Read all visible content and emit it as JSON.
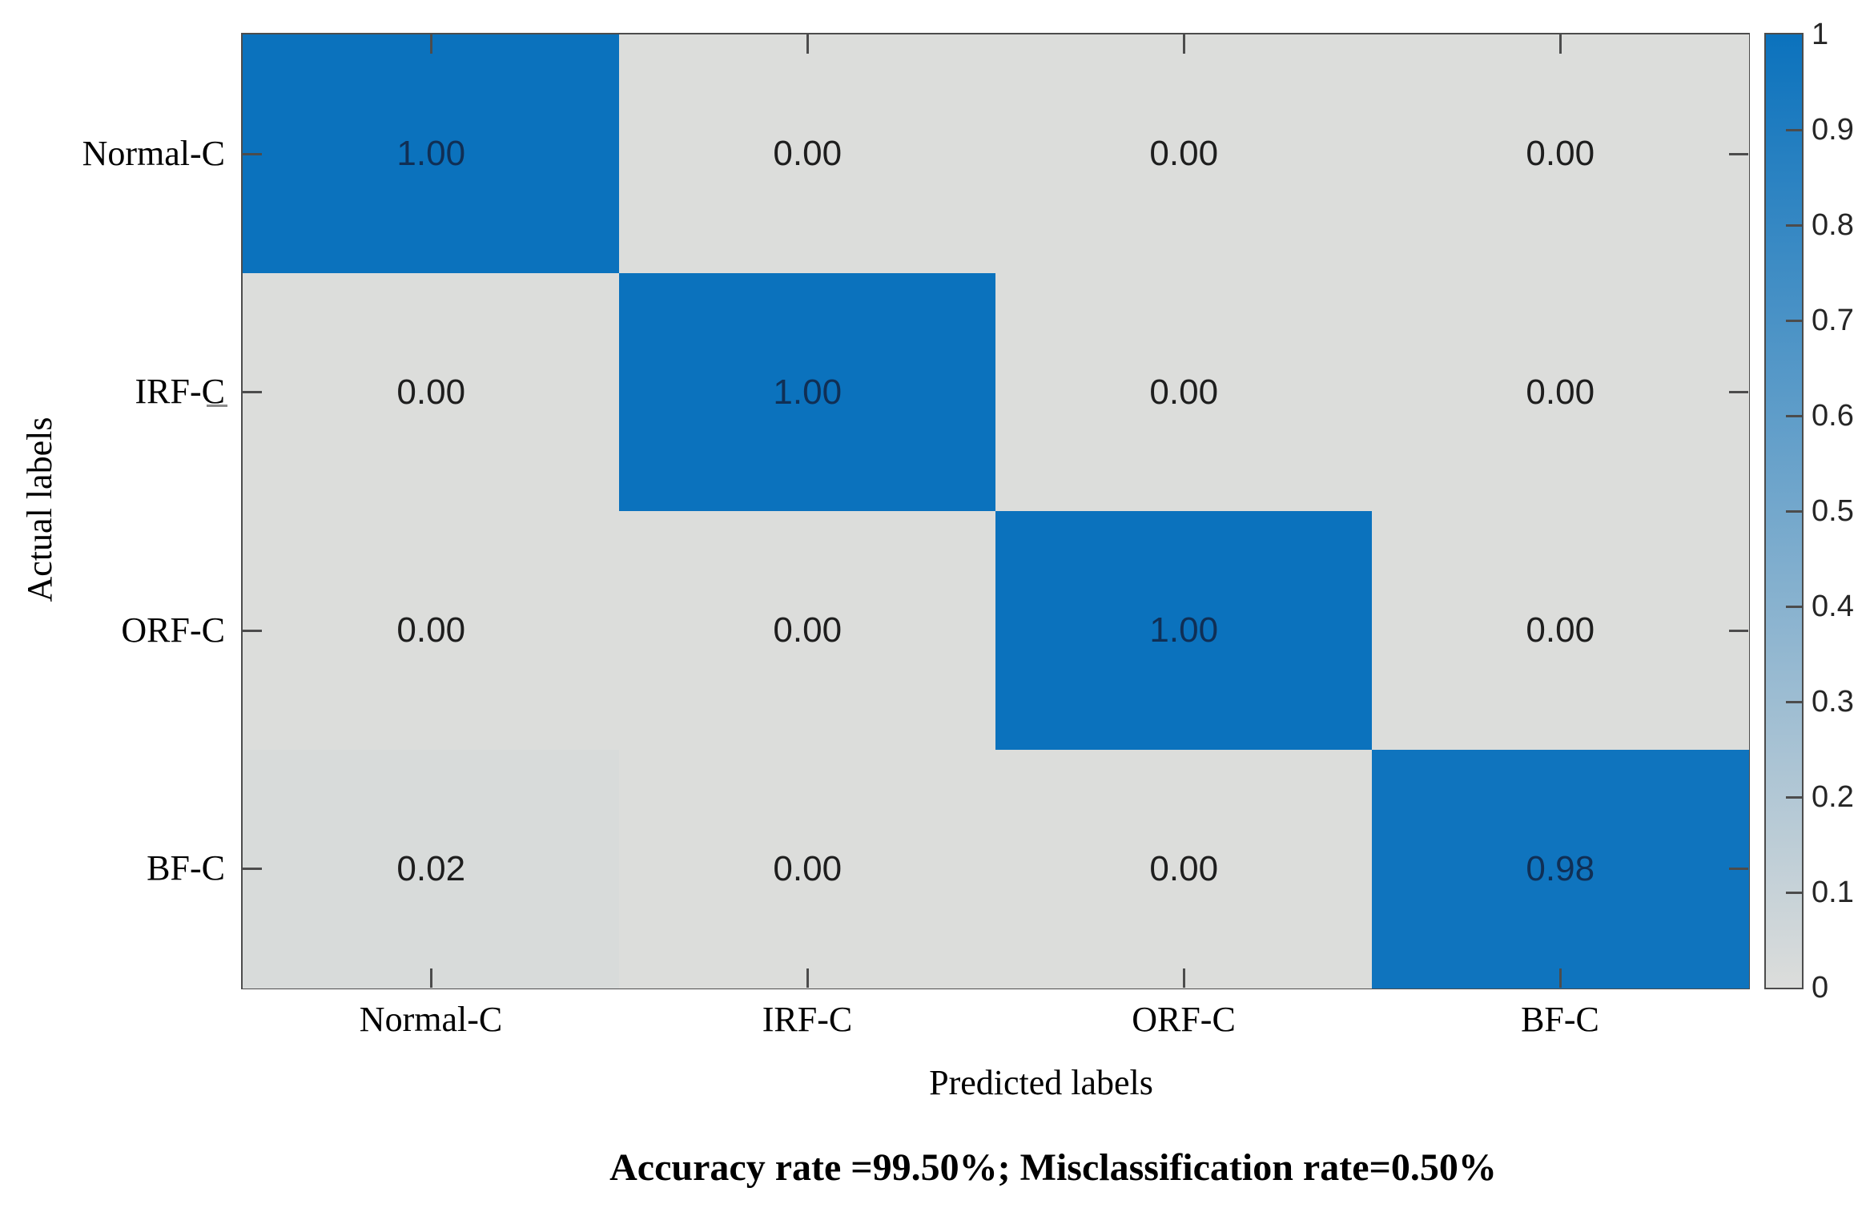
{
  "chart_data": {
    "type": "heatmap",
    "title": "",
    "xlabel": "Predicted labels",
    "ylabel": "Actual labels",
    "row_labels": [
      "Normal-C",
      "IRF-C",
      "ORF-C",
      "BF-C"
    ],
    "col_labels": [
      "Normal-C",
      "IRF-C",
      "ORF-C",
      "BF-C"
    ],
    "matrix": [
      [
        1.0,
        0.0,
        0.0,
        0.0
      ],
      [
        0.0,
        1.0,
        0.0,
        0.0
      ],
      [
        0.0,
        0.0,
        1.0,
        0.0
      ],
      [
        0.02,
        0.0,
        0.0,
        0.98
      ]
    ],
    "value_format_decimals": 2,
    "colorbar": {
      "range": [
        0,
        1
      ],
      "tick_values": [
        0,
        0.1,
        0.2,
        0.3,
        0.4,
        0.5,
        0.6,
        0.7,
        0.8,
        0.9,
        1
      ],
      "tick_labels": [
        "0",
        "0.1",
        "0.2",
        "0.3",
        "0.4",
        "0.5",
        "0.6",
        "0.7",
        "0.8",
        "0.9",
        "1"
      ],
      "position": "right"
    },
    "caption": "Accuracy rate =99.50%; Misclassification rate=0.50%",
    "grid": false,
    "legend": "none"
  },
  "colors": {
    "high": "#0b72bd",
    "low": "#dcdddb",
    "text_on_high": "#102f55",
    "text_on_low": "#1e1e1e",
    "axis": "#4c4c4c"
  }
}
